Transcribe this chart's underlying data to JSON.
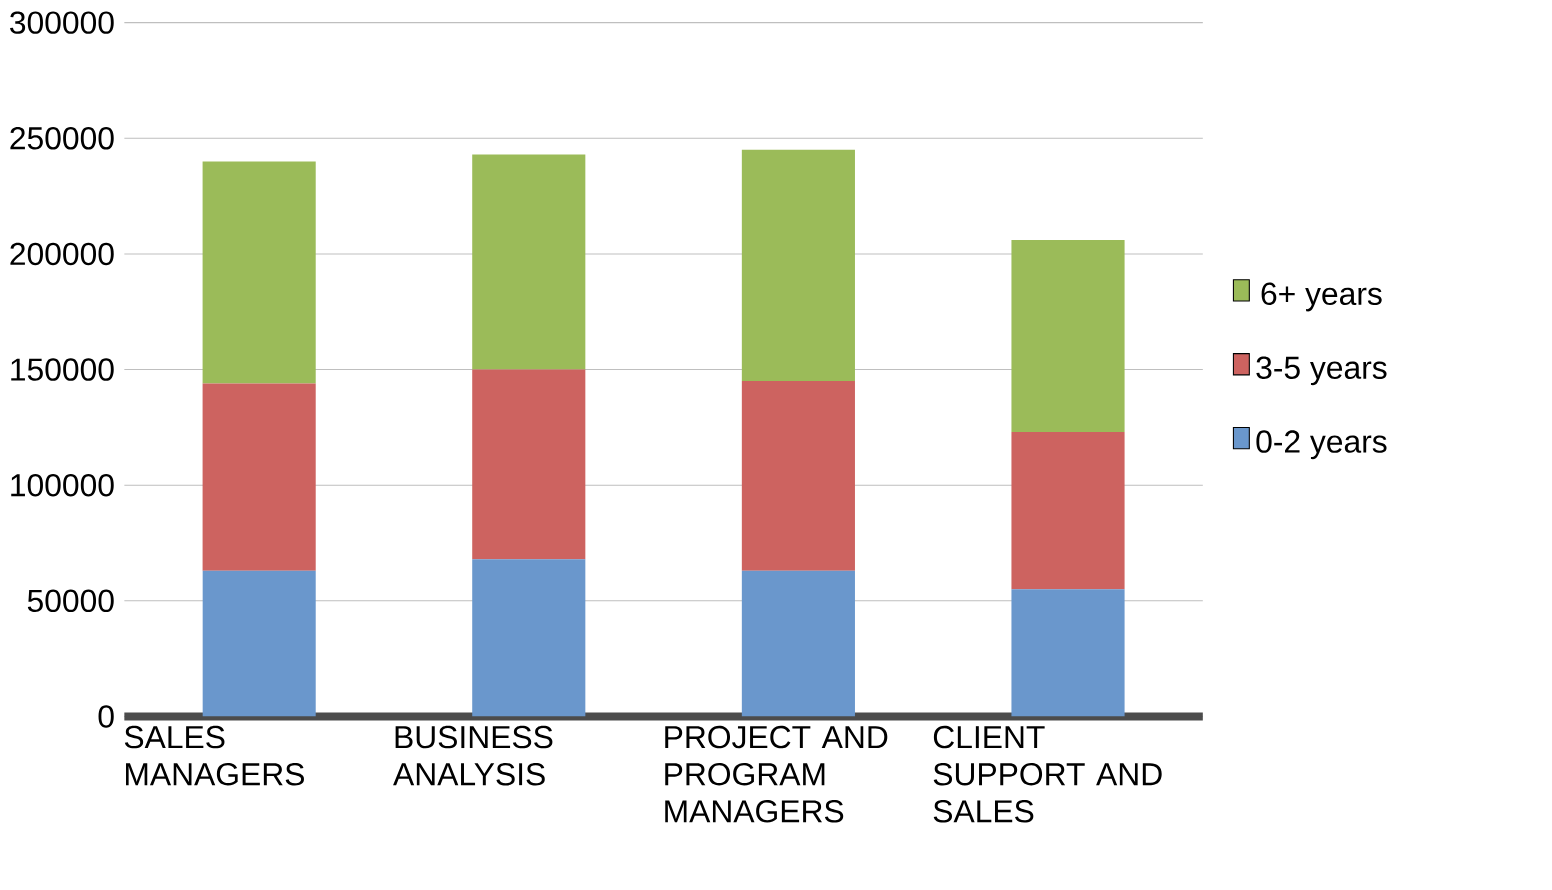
{
  "chart_data": {
    "type": "bar",
    "stacked": true,
    "categories": [
      "SALES MANAGERS",
      "BUSINESS ANALYSIS",
      "PROJECT AND PROGRAM MANAGERS",
      "CLIENT SUPPORT AND SALES"
    ],
    "series": [
      {
        "name": "0-2 years",
        "color": "#6a97cc",
        "values": [
          63000,
          68000,
          63000,
          55000
        ]
      },
      {
        "name": "3-5 years",
        "color": "#cd6360",
        "values": [
          81000,
          82000,
          82000,
          68000
        ]
      },
      {
        "name": "6+ years",
        "color": "#9bbb59",
        "values": [
          96000,
          93000,
          100000,
          83000
        ]
      }
    ],
    "ylim": [
      0,
      300000
    ],
    "yticks": [
      0,
      50000,
      100000,
      150000,
      200000,
      250000,
      300000
    ],
    "grid": "y",
    "legend": "right"
  }
}
